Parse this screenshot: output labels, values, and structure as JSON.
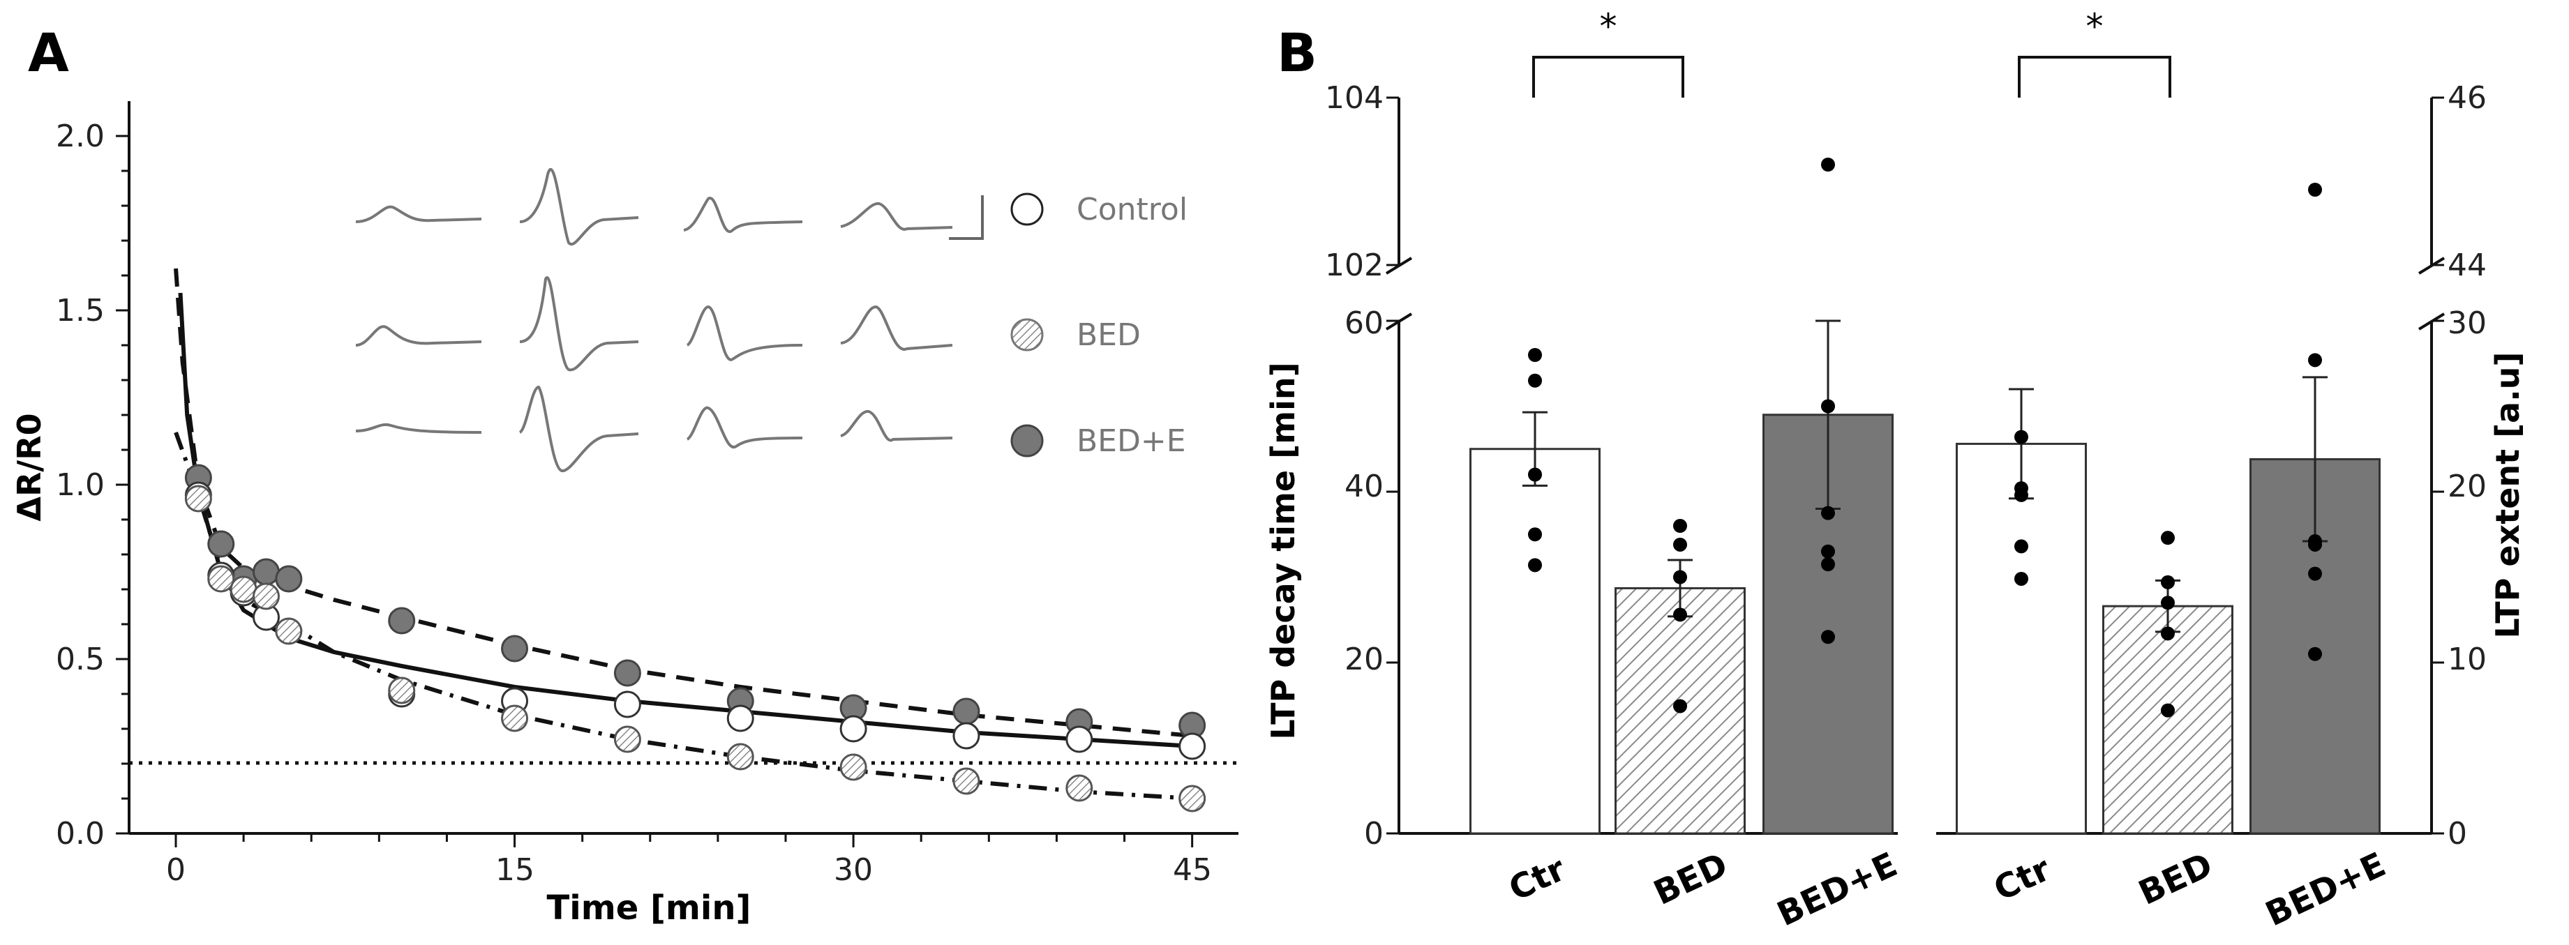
{
  "colors": {
    "control": "#ffffff",
    "bed_hatch": "#8a8a8a",
    "bede": "#777777",
    "stroke": "#111111",
    "trace": "#777777"
  },
  "panel_a": {
    "label": "A",
    "ylabel": "ΔR/R0",
    "xlabel": "Time [min]",
    "legend": [
      "Control",
      "BED",
      "BED+E"
    ],
    "yticks": [
      "0.0",
      "0.5",
      "1.0",
      "1.5",
      "2.0"
    ],
    "xticks": [
      "0",
      "15",
      "30",
      "45"
    ]
  },
  "panel_b": {
    "label": "B",
    "ylabel_left": "LTP decay time [min]",
    "ylabel_right": "LTP extent [a.u]",
    "sig_left": "*",
    "sig_right": "*",
    "left_ticks_upper": [
      "102",
      "104"
    ],
    "left_ticks_lower": [
      "0",
      "20",
      "40",
      "60"
    ],
    "right_ticks_upper": [
      "44",
      "46"
    ],
    "right_ticks_lower": [
      "0",
      "10",
      "20",
      "30"
    ],
    "categories": [
      "Ctr",
      "BED",
      "BED+E"
    ]
  },
  "chart_data": [
    {
      "type": "scatter",
      "title": "A",
      "xlabel": "Time [min]",
      "ylabel": "ΔR/R0",
      "xlim": [
        -2,
        47
      ],
      "ylim": [
        0,
        2.1
      ],
      "reference_line": 0.2,
      "series": [
        {
          "name": "Control",
          "x": [
            1,
            2,
            3,
            4,
            10,
            15,
            20,
            25,
            30,
            35,
            40,
            45
          ],
          "y": [
            0.97,
            0.74,
            0.69,
            0.62,
            0.4,
            0.38,
            0.37,
            0.33,
            0.3,
            0.28,
            0.27,
            0.25
          ]
        },
        {
          "name": "BED",
          "x": [
            1,
            2,
            3,
            4,
            5,
            10,
            15,
            20,
            25,
            30,
            35,
            40,
            45
          ],
          "y": [
            0.96,
            0.73,
            0.7,
            0.68,
            0.58,
            0.41,
            0.33,
            0.27,
            0.22,
            0.19,
            0.15,
            0.13,
            0.1
          ]
        },
        {
          "name": "BED+E",
          "x": [
            1,
            2,
            3,
            4,
            5,
            10,
            15,
            20,
            25,
            30,
            35,
            40,
            45
          ],
          "y": [
            1.02,
            0.83,
            0.73,
            0.75,
            0.73,
            0.61,
            0.53,
            0.46,
            0.38,
            0.36,
            0.35,
            0.32,
            0.31
          ]
        }
      ],
      "fits": [
        {
          "name": "Control fit",
          "style": "solid",
          "x": [
            0.2,
            0.5,
            1,
            2,
            3,
            5,
            7,
            10,
            15,
            20,
            25,
            30,
            35,
            40,
            45
          ],
          "y": [
            1.55,
            1.2,
            0.98,
            0.75,
            0.64,
            0.56,
            0.52,
            0.48,
            0.42,
            0.38,
            0.35,
            0.32,
            0.29,
            0.27,
            0.25
          ]
        },
        {
          "name": "BED+E fit",
          "style": "dashed",
          "x": [
            0,
            0.3,
            1,
            2,
            3,
            5,
            7,
            10,
            15,
            20,
            25,
            30,
            35,
            40,
            45
          ],
          "y": [
            1.62,
            1.35,
            1.0,
            0.82,
            0.76,
            0.71,
            0.67,
            0.62,
            0.54,
            0.47,
            0.42,
            0.38,
            0.34,
            0.31,
            0.28
          ]
        },
        {
          "name": "BED fit",
          "style": "dashdot",
          "x": [
            0,
            1,
            2,
            3,
            5,
            7,
            10,
            15,
            20,
            25,
            30,
            35,
            40,
            45
          ],
          "y": [
            1.15,
            0.97,
            0.76,
            0.67,
            0.6,
            0.52,
            0.44,
            0.34,
            0.27,
            0.22,
            0.18,
            0.15,
            0.12,
            0.1
          ]
        }
      ]
    },
    {
      "type": "bar",
      "title": "LTP decay time",
      "ylabel": "LTP decay time [min]",
      "categories": [
        "Ctr",
        "BED",
        "BED+E"
      ],
      "values": [
        45,
        28.7,
        49
      ],
      "errors": [
        4.3,
        3.3,
        11
      ],
      "points": [
        [
          56,
          53,
          42,
          35,
          31.4
        ],
        [
          36,
          33.8,
          30,
          25.6,
          14.9
        ],
        [
          103.2,
          50,
          33,
          37.5,
          31.5,
          23
        ]
      ],
      "broken_axis": {
        "lower": [
          0,
          60
        ],
        "upper": [
          102,
          104
        ]
      },
      "significance": "*"
    },
    {
      "type": "bar",
      "title": "LTP extent",
      "ylabel": "LTP extent [a.u]",
      "categories": [
        "Ctr",
        "BED",
        "BED+E"
      ],
      "values": [
        22.8,
        13.3,
        21.9
      ],
      "errors": [
        3.2,
        1.5,
        4.8
      ],
      "points": [
        [
          23.2,
          20.2,
          19.8,
          16.8,
          14.9
        ],
        [
          17.3,
          14.7,
          13.5,
          11.7,
          7.2
        ],
        [
          44.9,
          27.7,
          17.1,
          16.9,
          15.2,
          10.5
        ]
      ],
      "broken_axis": {
        "lower": [
          0,
          30
        ],
        "upper": [
          44,
          46
        ]
      },
      "significance": "*"
    }
  ]
}
